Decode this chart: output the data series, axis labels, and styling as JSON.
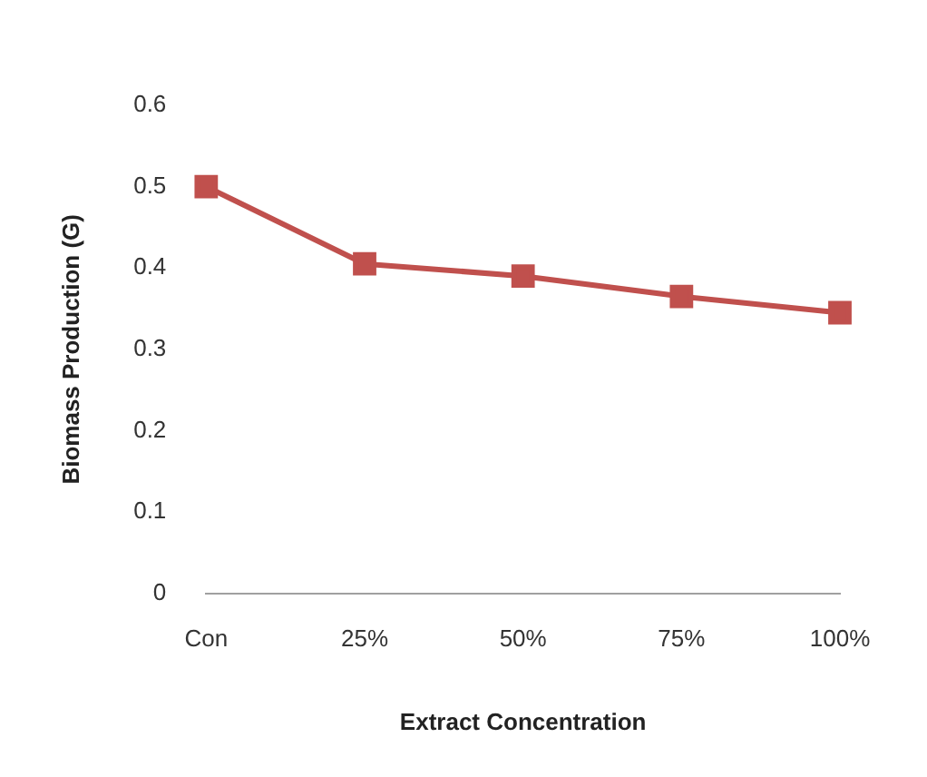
{
  "chart_data": {
    "type": "line",
    "xlabel": "Extract Concentration",
    "ylabel": "Biomass Production (G)",
    "categories": [
      "Con",
      "25%",
      "50%",
      "75%",
      "100%"
    ],
    "series": [
      {
        "color": "#c0504d",
        "values": [
          0.5,
          0.405,
          0.39,
          0.365,
          0.345
        ]
      }
    ],
    "ylim": [
      0,
      0.6
    ],
    "yticks": [
      0,
      0.1,
      0.2,
      0.3,
      0.4,
      0.5,
      0.6
    ],
    "grid": false,
    "legend": false,
    "marker": "square",
    "line_style": "solid"
  }
}
